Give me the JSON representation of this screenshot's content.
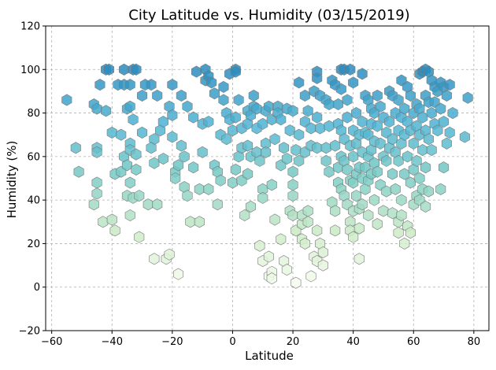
{
  "chart_data": {
    "type": "scatter",
    "title": "City Latitude vs. Humidity (03/15/2019)",
    "xlabel": "Latitude",
    "ylabel": "Humidity (%)",
    "xlim": [
      -62,
      85
    ],
    "ylim": [
      -20,
      120
    ],
    "x_ticks": [
      -60,
      -40,
      -20,
      0,
      20,
      40,
      60,
      80
    ],
    "y_ticks": [
      -20,
      0,
      20,
      40,
      60,
      80,
      100,
      120
    ],
    "grid": true,
    "marker": "hexagon",
    "color_scale": [
      "#f7fcf0",
      "#ccebc5",
      "#7bccc4",
      "#4eb3d3",
      "#2b8cbe"
    ],
    "points": [
      [
        -55,
        86
      ],
      [
        -52,
        64
      ],
      [
        -51,
        53
      ],
      [
        -46,
        84
      ],
      [
        -45,
        82
      ],
      [
        -45,
        64
      ],
      [
        -45,
        62
      ],
      [
        -45,
        48
      ],
      [
        -45,
        43
      ],
      [
        -46,
        38
      ],
      [
        -44,
        93
      ],
      [
        -43,
        30
      ],
      [
        -42,
        100
      ],
      [
        -41,
        100
      ],
      [
        -42,
        81
      ],
      [
        -40,
        31
      ],
      [
        -39,
        26
      ],
      [
        -39,
        52
      ],
      [
        -40,
        71
      ],
      [
        -38,
        93
      ],
      [
        -37,
        53
      ],
      [
        -37,
        70
      ],
      [
        -36,
        100
      ],
      [
        -36,
        93
      ],
      [
        -35,
        82
      ],
      [
        -36,
        60
      ],
      [
        -35,
        56
      ],
      [
        -34,
        48
      ],
      [
        -35,
        42
      ],
      [
        -34,
        33
      ],
      [
        -33,
        41
      ],
      [
        -33,
        100
      ],
      [
        -32,
        100
      ],
      [
        -34,
        93
      ],
      [
        -34,
        83
      ],
      [
        -34,
        66
      ],
      [
        -34,
        63
      ],
      [
        -33,
        77
      ],
      [
        -32,
        61
      ],
      [
        -32,
        54
      ],
      [
        -31,
        42
      ],
      [
        -31,
        23
      ],
      [
        -30,
        88
      ],
      [
        -30,
        71
      ],
      [
        -29,
        93
      ],
      [
        -28,
        38
      ],
      [
        -27,
        93
      ],
      [
        -26,
        68
      ],
      [
        -27,
        64
      ],
      [
        -26,
        57
      ],
      [
        -26,
        13
      ],
      [
        -25,
        38
      ],
      [
        -25,
        88
      ],
      [
        -24,
        72
      ],
      [
        -23,
        59
      ],
      [
        -23,
        76
      ],
      [
        -22,
        13
      ],
      [
        -21,
        15
      ],
      [
        -21,
        83
      ],
      [
        -20,
        93
      ],
      [
        -20,
        79
      ],
      [
        -20,
        69
      ],
      [
        -19,
        53
      ],
      [
        -19,
        50
      ],
      [
        -18,
        6
      ],
      [
        -18,
        56
      ],
      [
        -17,
        88
      ],
      [
        -17,
        65
      ],
      [
        -16,
        60
      ],
      [
        -16,
        46
      ],
      [
        -15,
        83
      ],
      [
        -15,
        42
      ],
      [
        -14,
        30
      ],
      [
        -13,
        55
      ],
      [
        -13,
        78
      ],
      [
        -12,
        99
      ],
      [
        -11,
        45
      ],
      [
        -11,
        30
      ],
      [
        -10,
        62
      ],
      [
        -10,
        75
      ],
      [
        -9,
        100
      ],
      [
        -9,
        95
      ],
      [
        -8,
        97
      ],
      [
        -8,
        76
      ],
      [
        -8,
        45
      ],
      [
        -7,
        94
      ],
      [
        -6,
        89
      ],
      [
        -6,
        56
      ],
      [
        -5,
        38
      ],
      [
        -5,
        53
      ],
      [
        -4,
        49
      ],
      [
        -4,
        70
      ],
      [
        -3,
        86
      ],
      [
        -3,
        92
      ],
      [
        -2,
        80
      ],
      [
        -2,
        68
      ],
      [
        -1,
        98
      ],
      [
        -1,
        77
      ],
      [
        0,
        72
      ],
      [
        0,
        48
      ],
      [
        1,
        100
      ],
      [
        1,
        99
      ],
      [
        1,
        78
      ],
      [
        1,
        54
      ],
      [
        2,
        86
      ],
      [
        2,
        60
      ],
      [
        3,
        73
      ],
      [
        3,
        49
      ],
      [
        3,
        64
      ],
      [
        4,
        33
      ],
      [
        5,
        81
      ],
      [
        5,
        75
      ],
      [
        5,
        65
      ],
      [
        5,
        52
      ],
      [
        6,
        79
      ],
      [
        6,
        60
      ],
      [
        6,
        37
      ],
      [
        7,
        83
      ],
      [
        7,
        88
      ],
      [
        8,
        82
      ],
      [
        8,
        62
      ],
      [
        8,
        73
      ],
      [
        9,
        19
      ],
      [
        9,
        58
      ],
      [
        10,
        75
      ],
      [
        10,
        45
      ],
      [
        10,
        41
      ],
      [
        10,
        12
      ],
      [
        11,
        81
      ],
      [
        11,
        66
      ],
      [
        11,
        62
      ],
      [
        12,
        83
      ],
      [
        12,
        14
      ],
      [
        12,
        5
      ],
      [
        13,
        77
      ],
      [
        13,
        47
      ],
      [
        13,
        7
      ],
      [
        13,
        4
      ],
      [
        14,
        68
      ],
      [
        14,
        31
      ],
      [
        15,
        83
      ],
      [
        15,
        80
      ],
      [
        16,
        77
      ],
      [
        16,
        56
      ],
      [
        16,
        22
      ],
      [
        17,
        64
      ],
      [
        17,
        12
      ],
      [
        18,
        59
      ],
      [
        18,
        82
      ],
      [
        18,
        8
      ],
      [
        19,
        35
      ],
      [
        19,
        72
      ],
      [
        20,
        81
      ],
      [
        20,
        53
      ],
      [
        20,
        47
      ],
      [
        20,
        42
      ],
      [
        20,
        33
      ],
      [
        21,
        63
      ],
      [
        21,
        26
      ],
      [
        21,
        2
      ],
      [
        22,
        94
      ],
      [
        22,
        70
      ],
      [
        22,
        58
      ],
      [
        23,
        29
      ],
      [
        23,
        22
      ],
      [
        23,
        33
      ],
      [
        24,
        88
      ],
      [
        24,
        76
      ],
      [
        24,
        62
      ],
      [
        24,
        20
      ],
      [
        25,
        81
      ],
      [
        25,
        35
      ],
      [
        25,
        30
      ],
      [
        26,
        73
      ],
      [
        26,
        65
      ],
      [
        26,
        5
      ],
      [
        27,
        90
      ],
      [
        27,
        14
      ],
      [
        28,
        99
      ],
      [
        28,
        96
      ],
      [
        28,
        78
      ],
      [
        28,
        64
      ],
      [
        28,
        26
      ],
      [
        28,
        12
      ],
      [
        29,
        88
      ],
      [
        29,
        73
      ],
      [
        29,
        20
      ],
      [
        30,
        16
      ],
      [
        30,
        10
      ],
      [
        31,
        86
      ],
      [
        31,
        64
      ],
      [
        31,
        58
      ],
      [
        32,
        84
      ],
      [
        32,
        74
      ],
      [
        32,
        53
      ],
      [
        33,
        39
      ],
      [
        33,
        95
      ],
      [
        34,
        93
      ],
      [
        34,
        65
      ],
      [
        34,
        35
      ],
      [
        34,
        26
      ],
      [
        35,
        84
      ],
      [
        35,
        75
      ],
      [
        35,
        55
      ],
      [
        35,
        48
      ],
      [
        36,
        100
      ],
      [
        36,
        91
      ],
      [
        36,
        72
      ],
      [
        36,
        60
      ],
      [
        36,
        45
      ],
      [
        37,
        100
      ],
      [
        37,
        68
      ],
      [
        37,
        58
      ],
      [
        37,
        42
      ],
      [
        38,
        86
      ],
      [
        38,
        78
      ],
      [
        38,
        54
      ],
      [
        38,
        38
      ],
      [
        39,
        100
      ],
      [
        39,
        65
      ],
      [
        39,
        49
      ],
      [
        39,
        30
      ],
      [
        39,
        26
      ],
      [
        40,
        94
      ],
      [
        40,
        72
      ],
      [
        40,
        60
      ],
      [
        40,
        48
      ],
      [
        40,
        35
      ],
      [
        40,
        23
      ],
      [
        41,
        80
      ],
      [
        41,
        66
      ],
      [
        41,
        52
      ],
      [
        41,
        42
      ],
      [
        42,
        70
      ],
      [
        42,
        55
      ],
      [
        42,
        36
      ],
      [
        42,
        27
      ],
      [
        42,
        13
      ],
      [
        43,
        98
      ],
      [
        43,
        76
      ],
      [
        43,
        62
      ],
      [
        43,
        50
      ],
      [
        43,
        38
      ],
      [
        44,
        88
      ],
      [
        44,
        71
      ],
      [
        44,
        55
      ],
      [
        44,
        45
      ],
      [
        45,
        86
      ],
      [
        45,
        70
      ],
      [
        45,
        60
      ],
      [
        45,
        49
      ],
      [
        45,
        33
      ],
      [
        46,
        82
      ],
      [
        46,
        75
      ],
      [
        46,
        63
      ],
      [
        46,
        52
      ],
      [
        47,
        80
      ],
      [
        47,
        67
      ],
      [
        47,
        57
      ],
      [
        47,
        40
      ],
      [
        48,
        88
      ],
      [
        48,
        74
      ],
      [
        48,
        53
      ],
      [
        48,
        29
      ],
      [
        49,
        83
      ],
      [
        49,
        66
      ],
      [
        49,
        47
      ],
      [
        50,
        78
      ],
      [
        50,
        60
      ],
      [
        50,
        35
      ],
      [
        51,
        71
      ],
      [
        51,
        58
      ],
      [
        51,
        44
      ],
      [
        52,
        90
      ],
      [
        52,
        76
      ],
      [
        52,
        64
      ],
      [
        53,
        88
      ],
      [
        53,
        68
      ],
      [
        53,
        52
      ],
      [
        53,
        34
      ],
      [
        54,
        80
      ],
      [
        54,
        62
      ],
      [
        54,
        45
      ],
      [
        55,
        86
      ],
      [
        55,
        72
      ],
      [
        55,
        58
      ],
      [
        55,
        30
      ],
      [
        55,
        25
      ],
      [
        56,
        95
      ],
      [
        56,
        78
      ],
      [
        56,
        66
      ],
      [
        56,
        40
      ],
      [
        56,
        33
      ],
      [
        57,
        82
      ],
      [
        57,
        70
      ],
      [
        57,
        52
      ],
      [
        57,
        20
      ],
      [
        58,
        92
      ],
      [
        58,
        76
      ],
      [
        58,
        60
      ],
      [
        58,
        28
      ],
      [
        59,
        88
      ],
      [
        59,
        72
      ],
      [
        59,
        48
      ],
      [
        59,
        25
      ],
      [
        60,
        80
      ],
      [
        60,
        66
      ],
      [
        60,
        54
      ],
      [
        60,
        38
      ],
      [
        61,
        84
      ],
      [
        61,
        74
      ],
      [
        61,
        58
      ],
      [
        61,
        42
      ],
      [
        62,
        98
      ],
      [
        62,
        82
      ],
      [
        62,
        70
      ],
      [
        62,
        50
      ],
      [
        62,
        40
      ],
      [
        63,
        99
      ],
      [
        63,
        78
      ],
      [
        63,
        63
      ],
      [
        63,
        45
      ],
      [
        64,
        100
      ],
      [
        64,
        88
      ],
      [
        64,
        72
      ],
      [
        64,
        55
      ],
      [
        64,
        37
      ],
      [
        65,
        99
      ],
      [
        65,
        85
      ],
      [
        65,
        68
      ],
      [
        65,
        44
      ],
      [
        66,
        95
      ],
      [
        66,
        80
      ],
      [
        66,
        63
      ],
      [
        67,
        92
      ],
      [
        67,
        85
      ],
      [
        67,
        75
      ],
      [
        68,
        90
      ],
      [
        68,
        72
      ],
      [
        69,
        94
      ],
      [
        69,
        82
      ],
      [
        69,
        45
      ],
      [
        70,
        92
      ],
      [
        70,
        76
      ],
      [
        70,
        55
      ],
      [
        71,
        88
      ],
      [
        71,
        66
      ],
      [
        72,
        93
      ],
      [
        72,
        71
      ],
      [
        73,
        80
      ],
      [
        78,
        87
      ],
      [
        77,
        69
      ]
    ]
  }
}
